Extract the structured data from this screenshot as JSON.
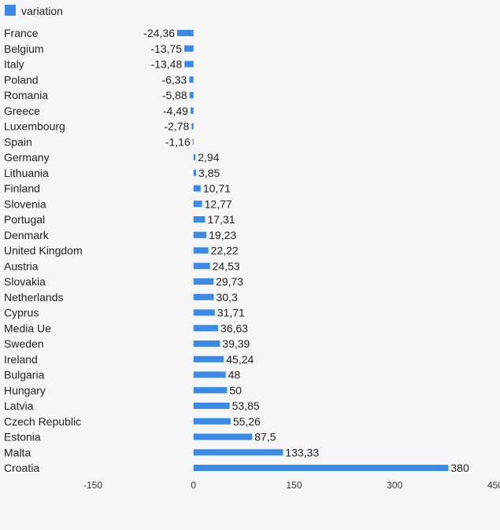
{
  "chart_data": {
    "type": "bar",
    "orientation": "horizontal",
    "legend": {
      "label": "variation",
      "color": "#3b8ae8",
      "placement": "top-left"
    },
    "categories": [
      "France",
      "Belgium",
      "Italy",
      "Poland",
      "Romania",
      "Greece",
      "Luxembourg",
      "Spain",
      "Germany",
      "Lithuania",
      "Finland",
      "Slovenia",
      "Portugal",
      "Denmark",
      "United Kingdom",
      "Austria",
      "Slovakia",
      "Netherlands",
      "Cyprus",
      "Media Ue",
      "Sweden",
      "Ireland",
      "Bulgaria",
      "Hungary",
      "Latvia",
      "Czech Republic",
      "Estonia",
      "Malta",
      "Croatia"
    ],
    "series": [
      {
        "name": "variation",
        "color": "#3b8ae8",
        "values": [
          -24.36,
          -13.75,
          -13.48,
          -6.33,
          -5.88,
          -4.49,
          -2.78,
          -1.16,
          2.94,
          3.85,
          10.71,
          12.77,
          17.31,
          19.23,
          22.22,
          24.53,
          29.73,
          30.3,
          31.71,
          36.63,
          39.39,
          45.24,
          48,
          50,
          53.85,
          55.26,
          87.5,
          133.33,
          380
        ],
        "labels": [
          "-24,36",
          "-13,75",
          "-13,48",
          "-6,33",
          "-5,88",
          "-4,49",
          "-2,78",
          "-1,16",
          "2,94",
          "3,85",
          "10,71",
          "12,77",
          "17,31",
          "19,23",
          "22,22",
          "24,53",
          "29,73",
          "30,3",
          "31,71",
          "36,63",
          "39,39",
          "45,24",
          "48",
          "50",
          "53,85",
          "55,26",
          "87,5",
          "133,33",
          "380"
        ]
      }
    ],
    "xlim": [
      -150,
      450
    ],
    "xticks": [
      -150,
      0,
      150,
      300,
      450
    ],
    "xtick_labels": [
      "-150",
      "0",
      "150",
      "300",
      "450"
    ],
    "grid": false
  }
}
